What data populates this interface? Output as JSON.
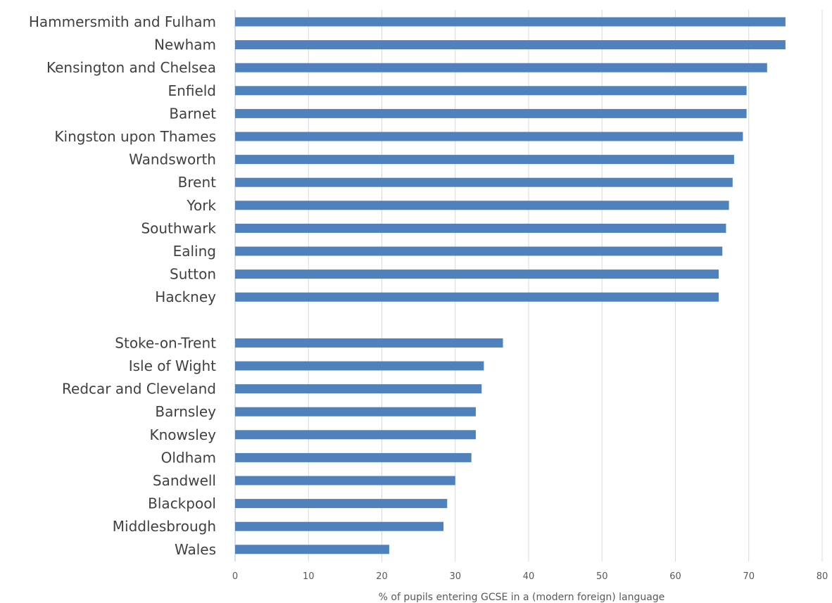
{
  "chart_data": {
    "type": "bar",
    "orientation": "horizontal",
    "categories": [
      "Hammersmith and Fulham",
      "Newham",
      "Kensington and Chelsea",
      "Enfield",
      "Barnet",
      "Kingston upon Thames",
      "Wandsworth",
      "Brent",
      "York",
      "Southwark",
      "Ealing",
      "Sutton",
      "Hackney",
      "",
      "Stoke-on-Trent",
      "Isle of Wight",
      "Redcar and Cleveland",
      "Barnsley",
      "Knowsley",
      "Oldham",
      "Sandwell",
      "Blackpool",
      "Middlesbrough",
      "Wales"
    ],
    "values": [
      75.0,
      75.0,
      72.5,
      69.7,
      69.7,
      69.2,
      68.0,
      67.8,
      67.3,
      66.9,
      66.4,
      65.9,
      65.9,
      null,
      36.5,
      33.9,
      33.6,
      32.8,
      32.8,
      32.2,
      30.0,
      28.9,
      28.4,
      21.0
    ],
    "xlabel": "% of pupils entering GCSE in a (modern foreign) language",
    "xlim": [
      0,
      80
    ],
    "xticks": [
      0,
      10,
      20,
      30,
      40,
      50,
      60,
      70,
      80
    ],
    "grid": true,
    "colors": {
      "bar": "#4f81bd",
      "grid": "#d9d9d9",
      "text": "#404040"
    }
  }
}
